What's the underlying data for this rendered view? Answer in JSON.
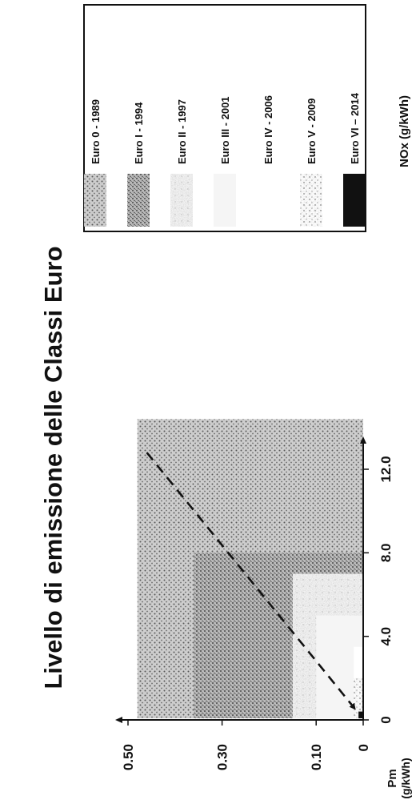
{
  "chart_data": {
    "type": "area",
    "title": "Livello di emissione delle Classi Euro",
    "xlabel": "NOx (g/kWh)",
    "ylabel_line1": "Pm",
    "ylabel_line2": "(g/kWh)",
    "x_ticks": [
      "0",
      "4.0",
      "8.0",
      "12.0"
    ],
    "x_tick_values": [
      0,
      4,
      8,
      12
    ],
    "y_ticks": [
      "0",
      "0.10",
      "0.30",
      "0.50"
    ],
    "y_tick_values": [
      0,
      0.1,
      0.3,
      0.5
    ],
    "xlim": [
      0,
      14
    ],
    "ylim": [
      0,
      0.5
    ],
    "series": [
      {
        "name": "Euro 0 - 1989",
        "nox": 14.4,
        "pm": 0.48,
        "pattern": "dots",
        "color": "#8c8c8c"
      },
      {
        "name": "Euro I - 1994",
        "nox": 8.0,
        "pm": 0.36,
        "pattern": "dense",
        "color": "#a0a0a0"
      },
      {
        "name": "Euro II - 1997",
        "nox": 7.0,
        "pm": 0.15,
        "pattern": "light",
        "color": "#e6e6e6"
      },
      {
        "name": "Euro III - 2001",
        "nox": 5.0,
        "pm": 0.1,
        "pattern": "none",
        "color": "#f5f5f5"
      },
      {
        "name": "Euro IV - 2006",
        "nox": 3.5,
        "pm": 0.02,
        "pattern": "none",
        "color": "#ffffff"
      },
      {
        "name": "Euro V - 2009",
        "nox": 2.0,
        "pm": 0.02,
        "pattern": "sparse",
        "color": "#bdbdbd"
      },
      {
        "name": "Euro VI – 2014",
        "nox": 0.4,
        "pm": 0.01,
        "pattern": "solid",
        "color": "#111111"
      }
    ],
    "trend_line": {
      "from": [
        12.8,
        0.46
      ],
      "to": [
        0.6,
        0.02
      ]
    }
  }
}
